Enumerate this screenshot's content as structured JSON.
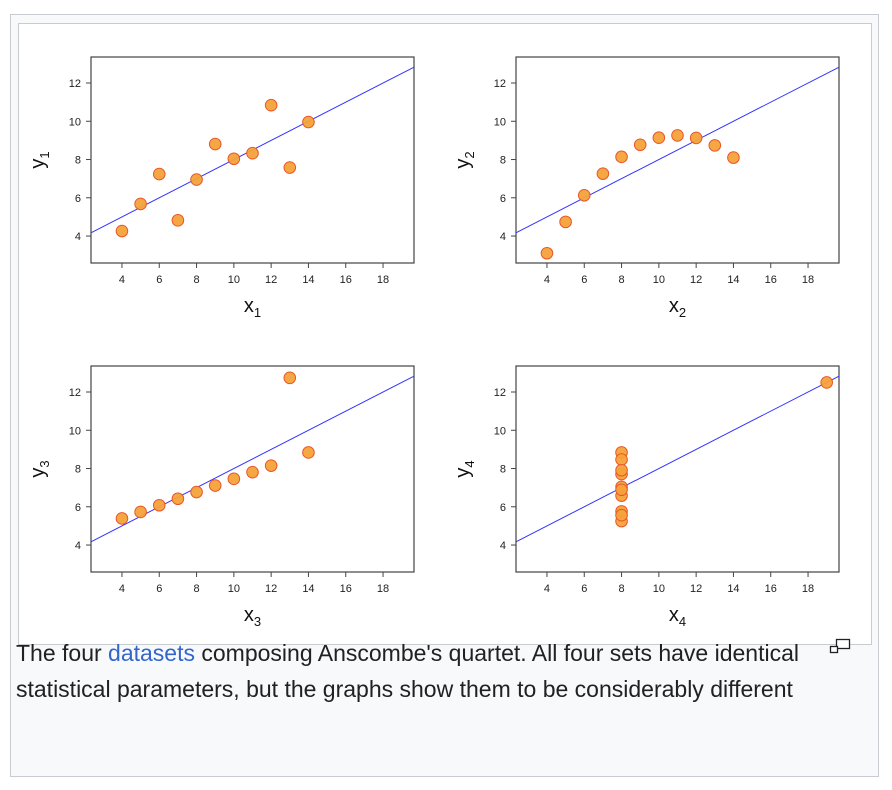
{
  "figure": {
    "caption": {
      "before_link": "The four ",
      "link_text": "datasets",
      "after_link": " composing Anscombe's quartet. All four sets have identical statistical parameters, but the graphs show them to be considerably different"
    },
    "magnify_icon": "enlarge-icon"
  },
  "colors": {
    "marker_fill": "#f4a23a",
    "marker_stroke": "#e8572a",
    "regression_line": "#3333ff",
    "axis": "#444444",
    "link": "#3366cc",
    "frame_border": "#c8ccd1",
    "frame_background": "#f8f9fa"
  },
  "chart_data": [
    {
      "type": "scatter",
      "title": "",
      "xlabel": "x1",
      "xlabel_main": "x",
      "xlabel_sub": "1",
      "ylabel": "y1",
      "ylabel_main": "y",
      "ylabel_sub": "1",
      "xlim": [
        2.34,
        19.66
      ],
      "ylim": [
        2.59,
        13.36
      ],
      "xticks": [
        4,
        6,
        8,
        10,
        12,
        14,
        16,
        18
      ],
      "yticks": [
        4,
        6,
        8,
        10,
        12
      ],
      "x": [
        10,
        8,
        13,
        9,
        11,
        14,
        6,
        4,
        12,
        7,
        5
      ],
      "y": [
        8.04,
        6.95,
        7.58,
        8.81,
        8.33,
        9.96,
        7.24,
        4.26,
        10.84,
        4.82,
        5.68
      ],
      "regression": {
        "intercept": 3.0,
        "slope": 0.5
      },
      "grid": false,
      "legend": null
    },
    {
      "type": "scatter",
      "title": "",
      "xlabel": "x2",
      "xlabel_main": "x",
      "xlabel_sub": "2",
      "ylabel": "y2",
      "ylabel_main": "y",
      "ylabel_sub": "2",
      "xlim": [
        2.34,
        19.66
      ],
      "ylim": [
        2.59,
        13.36
      ],
      "xticks": [
        4,
        6,
        8,
        10,
        12,
        14,
        16,
        18
      ],
      "yticks": [
        4,
        6,
        8,
        10,
        12
      ],
      "x": [
        10,
        8,
        13,
        9,
        11,
        14,
        6,
        4,
        12,
        7,
        5
      ],
      "y": [
        9.14,
        8.14,
        8.74,
        8.77,
        9.26,
        8.1,
        6.13,
        3.1,
        9.13,
        7.26,
        4.74
      ],
      "regression": {
        "intercept": 3.0,
        "slope": 0.5
      },
      "grid": false,
      "legend": null
    },
    {
      "type": "scatter",
      "title": "",
      "xlabel": "x3",
      "xlabel_main": "x",
      "xlabel_sub": "3",
      "ylabel": "y3",
      "ylabel_main": "y",
      "ylabel_sub": "3",
      "xlim": [
        2.34,
        19.66
      ],
      "ylim": [
        2.59,
        13.36
      ],
      "xticks": [
        4,
        6,
        8,
        10,
        12,
        14,
        16,
        18
      ],
      "yticks": [
        4,
        6,
        8,
        10,
        12
      ],
      "x": [
        10,
        8,
        13,
        9,
        11,
        14,
        6,
        4,
        12,
        7,
        5
      ],
      "y": [
        7.46,
        6.77,
        12.74,
        7.11,
        7.81,
        8.84,
        6.08,
        5.39,
        8.15,
        6.42,
        5.73
      ],
      "regression": {
        "intercept": 3.0,
        "slope": 0.5
      },
      "grid": false,
      "legend": null
    },
    {
      "type": "scatter",
      "title": "",
      "xlabel": "x4",
      "xlabel_main": "x",
      "xlabel_sub": "4",
      "ylabel": "y4",
      "ylabel_main": "y",
      "ylabel_sub": "4",
      "xlim": [
        2.34,
        19.66
      ],
      "ylim": [
        2.59,
        13.36
      ],
      "xticks": [
        4,
        6,
        8,
        10,
        12,
        14,
        16,
        18
      ],
      "yticks": [
        4,
        6,
        8,
        10,
        12
      ],
      "x": [
        8,
        8,
        8,
        8,
        8,
        8,
        8,
        19,
        8,
        8,
        8
      ],
      "y": [
        6.58,
        5.76,
        7.71,
        8.84,
        8.47,
        7.04,
        5.25,
        12.5,
        5.56,
        7.91,
        6.89
      ],
      "regression": {
        "intercept": 3.0,
        "slope": 0.5
      },
      "grid": false,
      "legend": null
    }
  ]
}
